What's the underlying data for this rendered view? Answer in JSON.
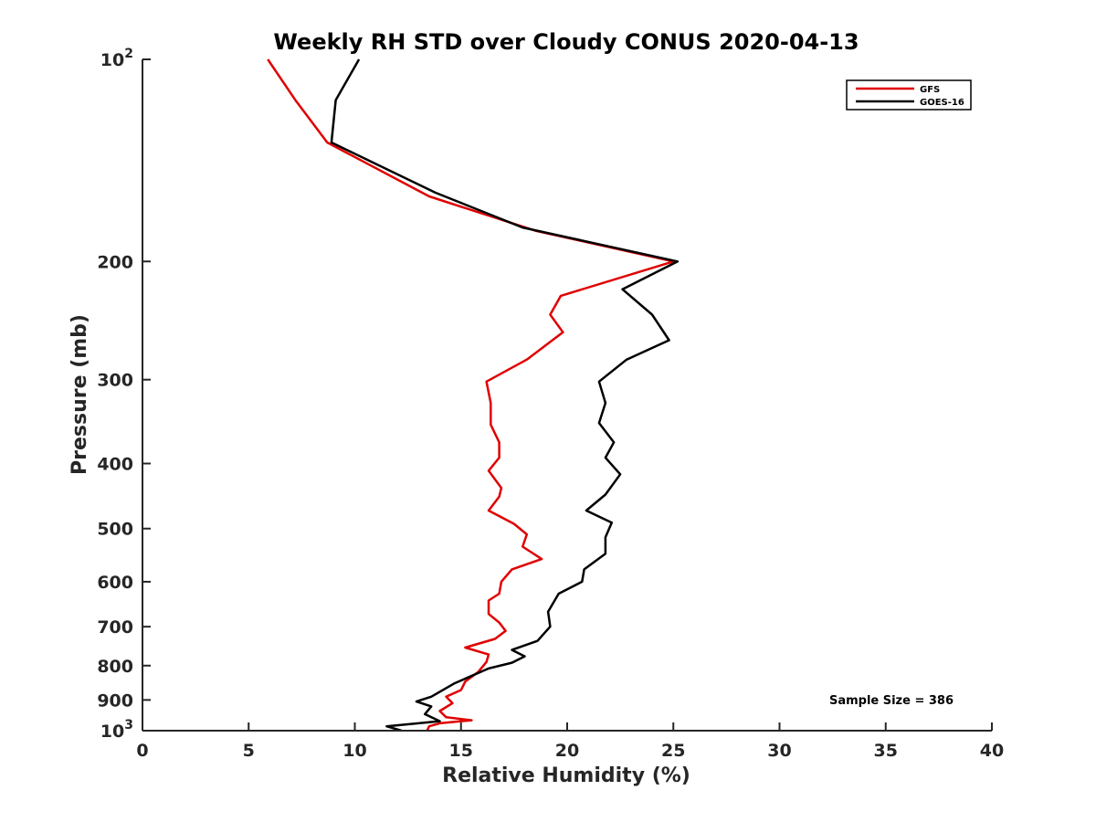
{
  "chart_data": {
    "type": "line",
    "title": "Weekly RH STD over Cloudy CONUS 2020-04-13",
    "xlabel": "Relative Humidity (%)",
    "ylabel": "Pressure (mb)",
    "xlim": [
      0,
      40
    ],
    "ylim": [
      100,
      1000
    ],
    "y_scale": "log",
    "y_inverted": true,
    "grid": false,
    "legend_position": "top-right",
    "x_ticks": [
      0,
      5,
      10,
      15,
      20,
      25,
      30,
      35,
      40
    ],
    "x_tick_labels": [
      "0",
      "5",
      "10",
      "15",
      "20",
      "25",
      "30",
      "35",
      "40"
    ],
    "y_ticks": [
      100,
      200,
      300,
      400,
      500,
      600,
      700,
      800,
      900,
      1000
    ],
    "y_tick_labels": [
      {
        "base": "10",
        "exp": "2"
      },
      {
        "base": "200",
        "exp": ""
      },
      {
        "base": "300",
        "exp": ""
      },
      {
        "base": "400",
        "exp": ""
      },
      {
        "base": "500",
        "exp": ""
      },
      {
        "base": "600",
        "exp": ""
      },
      {
        "base": "700",
        "exp": ""
      },
      {
        "base": "800",
        "exp": ""
      },
      {
        "base": "900",
        "exp": ""
      },
      {
        "base": "10",
        "exp": "3"
      }
    ],
    "series": [
      {
        "name": "GFS",
        "color": "#e00000",
        "points": [
          [
            5.9,
            100
          ],
          [
            7.2,
            115
          ],
          [
            8.7,
            133
          ],
          [
            13.5,
            160
          ],
          [
            18.5,
            180
          ],
          [
            25.0,
            200
          ],
          [
            19.7,
            225
          ],
          [
            19.2,
            240
          ],
          [
            19.8,
            255
          ],
          [
            18.1,
            280
          ],
          [
            16.2,
            302
          ],
          [
            16.4,
            325
          ],
          [
            16.4,
            350
          ],
          [
            16.8,
            372
          ],
          [
            16.8,
            392
          ],
          [
            16.3,
            410
          ],
          [
            16.9,
            435
          ],
          [
            16.8,
            448
          ],
          [
            16.3,
            470
          ],
          [
            17.5,
            492
          ],
          [
            18.1,
            510
          ],
          [
            17.9,
            532
          ],
          [
            18.8,
            555
          ],
          [
            17.4,
            575
          ],
          [
            16.9,
            600
          ],
          [
            16.8,
            625
          ],
          [
            16.3,
            640
          ],
          [
            16.3,
            670
          ],
          [
            16.8,
            690
          ],
          [
            17.1,
            710
          ],
          [
            16.6,
            730
          ],
          [
            15.2,
            752
          ],
          [
            16.3,
            770
          ],
          [
            16.2,
            790
          ],
          [
            15.8,
            818
          ],
          [
            15.2,
            845
          ],
          [
            15.0,
            870
          ],
          [
            14.3,
            890
          ],
          [
            14.6,
            910
          ],
          [
            14.0,
            935
          ],
          [
            14.3,
            955
          ],
          [
            15.5,
            965
          ],
          [
            14.0,
            975
          ],
          [
            13.5,
            985
          ],
          [
            13.4,
            1000
          ]
        ]
      },
      {
        "name": "GOES-16",
        "color": "#000000",
        "points": [
          [
            10.2,
            100
          ],
          [
            9.1,
            115
          ],
          [
            8.9,
            133
          ],
          [
            13.8,
            158
          ],
          [
            17.9,
            178
          ],
          [
            25.2,
            200
          ],
          [
            22.6,
            220
          ],
          [
            24.0,
            240
          ],
          [
            24.8,
            262
          ],
          [
            22.8,
            280
          ],
          [
            21.5,
            302
          ],
          [
            21.8,
            325
          ],
          [
            21.5,
            348
          ],
          [
            22.2,
            372
          ],
          [
            21.8,
            392
          ],
          [
            22.5,
            415
          ],
          [
            21.8,
            445
          ],
          [
            20.9,
            470
          ],
          [
            22.1,
            490
          ],
          [
            21.8,
            515
          ],
          [
            21.8,
            545
          ],
          [
            20.8,
            575
          ],
          [
            20.7,
            600
          ],
          [
            19.6,
            625
          ],
          [
            19.1,
            665
          ],
          [
            19.2,
            700
          ],
          [
            18.6,
            735
          ],
          [
            17.4,
            758
          ],
          [
            18.0,
            775
          ],
          [
            17.4,
            792
          ],
          [
            16.3,
            808
          ],
          [
            14.7,
            850
          ],
          [
            13.6,
            890
          ],
          [
            12.9,
            905
          ],
          [
            13.6,
            920
          ],
          [
            13.3,
            945
          ],
          [
            14.0,
            968
          ],
          [
            11.5,
            985
          ],
          [
            12.2,
            1000
          ]
        ]
      }
    ],
    "annotations": [
      "Sample Size = 386"
    ]
  }
}
